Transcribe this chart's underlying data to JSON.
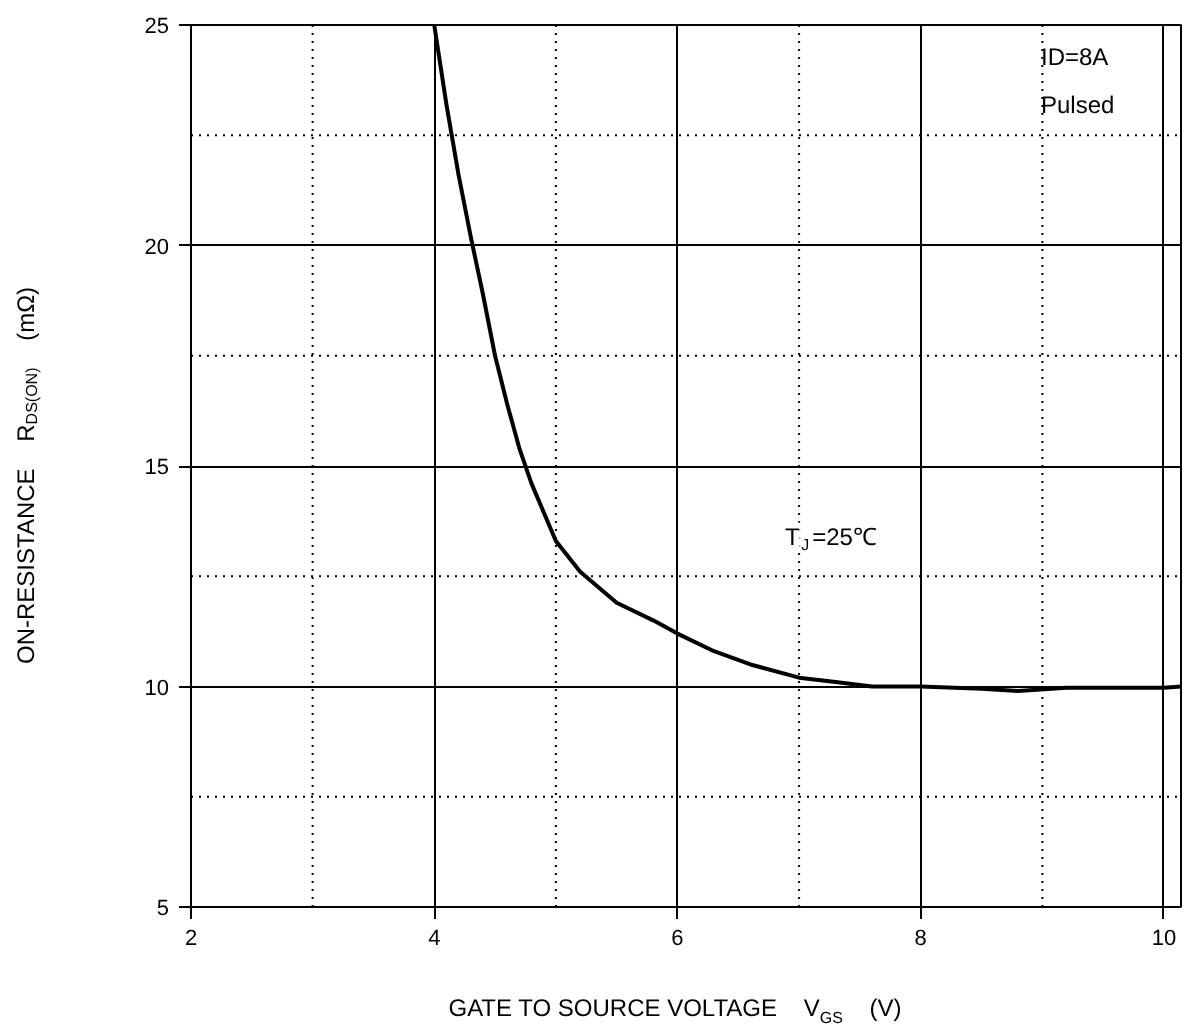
{
  "chart_data": {
    "type": "line",
    "xlabel": "GATE TO SOURCE VOLTAGE    V$_{GS}$    (V)",
    "ylabel": "ON-RESISTANCE    R$_{DS(ON)}$    (mΩ)",
    "x": [
      4.0,
      4.1,
      4.2,
      4.3,
      4.4,
      4.5,
      4.6,
      4.7,
      4.8,
      5.0,
      5.2,
      5.5,
      5.8,
      6.0,
      6.3,
      6.6,
      7.0,
      7.3,
      7.6,
      8.0,
      8.5,
      8.8,
      9.2,
      9.6,
      10.0,
      10.14
    ],
    "series": [
      {
        "color": "#000000",
        "values": [
          25,
          23.2,
          21.6,
          20.2,
          18.9,
          17.5,
          16.4,
          15.4,
          14.6,
          13.3,
          12.6,
          11.9,
          11.5,
          11.2,
          10.8,
          10.5,
          10.2,
          10.1,
          10.0,
          10.0,
          9.95,
          9.9,
          9.97,
          9.97,
          9.97,
          10.0
        ]
      }
    ],
    "xlim": [
      2,
      10.14
    ],
    "ylim": [
      5,
      25
    ],
    "xticks": [
      2,
      4,
      6,
      8,
      10
    ],
    "yticks": [
      5,
      10,
      15,
      20,
      25
    ],
    "grid": true,
    "line_style": "solid",
    "marker": "none",
    "annotations": [
      "ID=8A",
      "Pulsed",
      "T$_{J}$=25℃"
    ]
  }
}
